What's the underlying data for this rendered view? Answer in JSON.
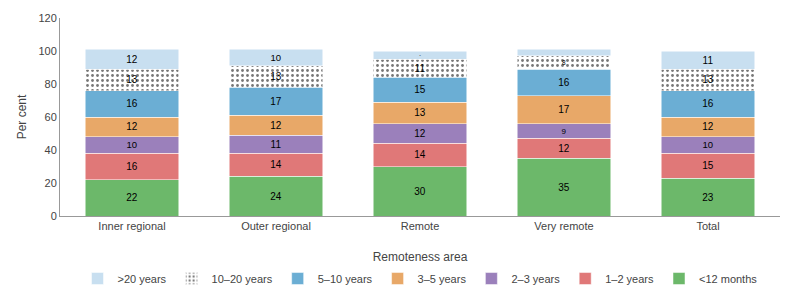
{
  "chart_data": {
    "type": "bar",
    "stacked": true,
    "data_labels": true,
    "grid": false,
    "legend": "bottom",
    "xlabel": "Remoteness area",
    "ylabel": "Per cent",
    "categories": [
      "Inner regional",
      "Outer regional",
      "Remote",
      "Very remote",
      "Total"
    ],
    "series": [
      {
        "name": "<12 months",
        "color": "#6CB86A",
        "values": [
          22,
          24,
          30,
          35,
          23
        ]
      },
      {
        "name": "1–2 years",
        "color": "#E07878",
        "values": [
          16,
          14,
          14,
          12,
          15
        ]
      },
      {
        "name": "2–3 years",
        "color": "#9B80BB",
        "values": [
          10,
          11,
          12,
          9,
          10
        ]
      },
      {
        "name": "3–5 years",
        "color": "#E8A868",
        "values": [
          12,
          12,
          13,
          17,
          12
        ]
      },
      {
        "name": "5–10 years",
        "color": "#6BAED4",
        "values": [
          16,
          17,
          15,
          16,
          16
        ]
      },
      {
        "name": "10–20 years",
        "color": "#B8B8B8",
        "marker": "dots",
        "values": [
          13,
          13,
          11,
          8,
          13
        ]
      },
      {
        "name": ">20 years",
        "color": "#C8DFF0",
        "values": [
          12,
          10,
          5,
          4,
          11
        ]
      }
    ],
    "ylim": [
      0,
      120
    ],
    "yticks": [
      0,
      20,
      40,
      60,
      80,
      100,
      120
    ]
  }
}
